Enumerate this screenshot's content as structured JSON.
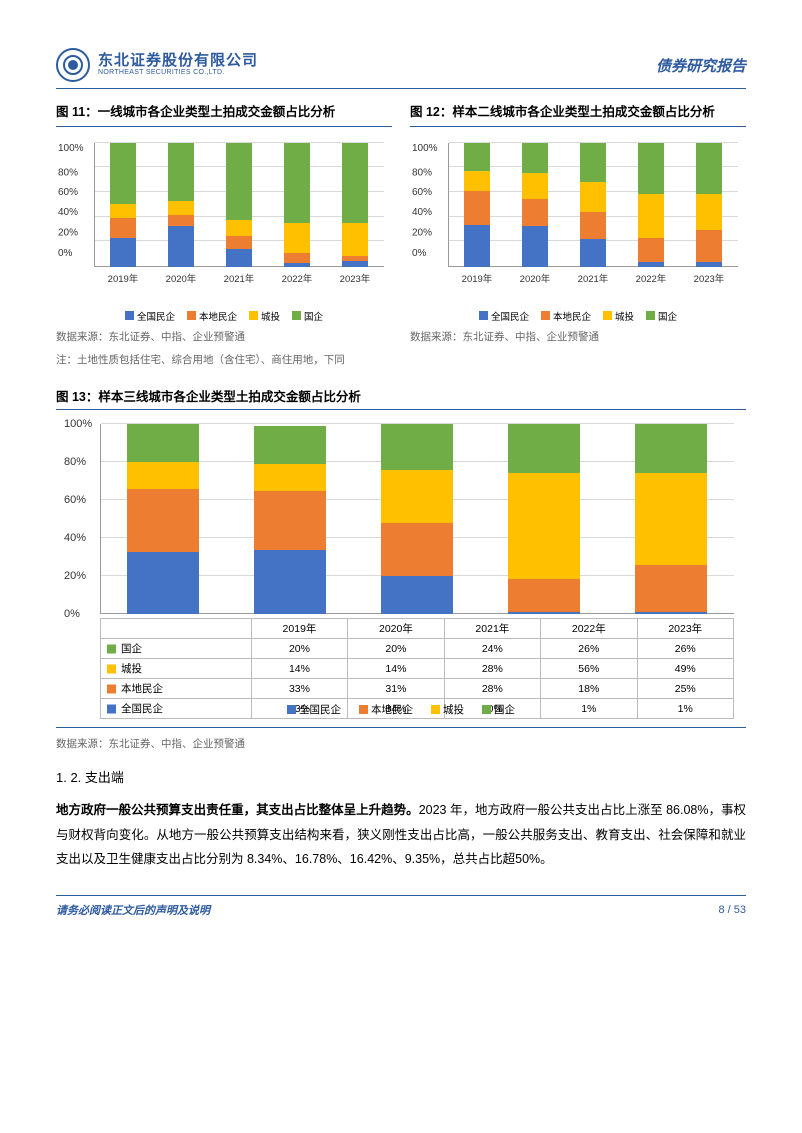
{
  "header": {
    "logo_cn": "东北证券股份有限公司",
    "logo_en": "NORTHEAST SECURITIES CO.,LTD.",
    "right": "债券研究报告"
  },
  "colors": {
    "s1": "#4472c4",
    "s2": "#ed7d31",
    "s3": "#ffc000",
    "s4": "#70ad47",
    "grid": "#d9d9d9",
    "brand": "#2e5b9f"
  },
  "legend_labels": [
    "全国民企",
    "本地民企",
    "城投",
    "国企"
  ],
  "fig11": {
    "title": "图 11：一线城市各企业类型土拍成交金额占比分析",
    "categories": [
      "2019年",
      "2020年",
      "2021年",
      "2022年",
      "2023年"
    ],
    "yticks": [
      "0%",
      "20%",
      "40%",
      "60%",
      "80%",
      "100%"
    ],
    "series": [
      [
        23,
        33,
        14,
        3,
        5
      ],
      [
        16,
        9,
        11,
        8,
        4
      ],
      [
        12,
        11,
        13,
        24,
        26
      ],
      [
        49,
        47,
        62,
        65,
        65
      ]
    ],
    "source": "数据来源：东北证券、中指、企业预警通",
    "note": "注：土地性质包括住宅、综合用地（含住宅）、商住用地，下同"
  },
  "fig12": {
    "title": "图 12：样本二线城市各企业类型土拍成交金额占比分析",
    "categories": [
      "2019年",
      "2020年",
      "2021年",
      "2022年",
      "2023年"
    ],
    "yticks": [
      "0%",
      "20%",
      "40%",
      "60%",
      "80%",
      "100%"
    ],
    "series": [
      [
        34,
        33,
        22,
        4,
        4
      ],
      [
        27,
        22,
        22,
        19,
        26
      ],
      [
        16,
        21,
        24,
        36,
        29
      ],
      [
        23,
        24,
        32,
        41,
        41
      ]
    ],
    "source": "数据来源：东北证券、中指、企业预警通"
  },
  "fig13": {
    "title": "图 13：样本三线城市各企业类型土拍成交金额占比分析",
    "categories": [
      "2019年",
      "2020年",
      "2021年",
      "2022年",
      "2023年"
    ],
    "yticks": [
      "0%",
      "20%",
      "40%",
      "60%",
      "80%",
      "100%"
    ],
    "series_labels": [
      "国企",
      "城投",
      "本地民企",
      "全国民企"
    ],
    "table_rows": [
      {
        "label": "国企",
        "color": "#70ad47",
        "vals": [
          "20%",
          "20%",
          "24%",
          "26%",
          "26%"
        ]
      },
      {
        "label": "城投",
        "color": "#ffc000",
        "vals": [
          "14%",
          "14%",
          "28%",
          "56%",
          "49%"
        ]
      },
      {
        "label": "本地民企",
        "color": "#ed7d31",
        "vals": [
          "33%",
          "31%",
          "28%",
          "18%",
          "25%"
        ]
      },
      {
        "label": "全国民企",
        "color": "#4472c4",
        "vals": [
          "33%",
          "34%",
          "20%",
          "1%",
          "1%"
        ]
      }
    ],
    "series": [
      [
        33,
        34,
        20,
        1,
        1
      ],
      [
        33,
        31,
        28,
        18,
        25
      ],
      [
        14,
        14,
        28,
        56,
        49
      ],
      [
        20,
        20,
        24,
        26,
        26
      ]
    ],
    "source": "数据来源：东北证券、中指、企业预警通"
  },
  "section": "1. 2.  支出端",
  "para1_bold": "地方政府一般公共预算支出责任重，其支出占比整体呈上升趋势。",
  "para1_rest": "2023 年，地方政府一般公共支出占比上涨至 86.08%，事权与财权背向变化。从地方一般公共预算支出结构来看，狭义刚性支出占比高，一般公共服务支出、教育支出、社会保障和就业支出以及卫生健康支出占比分别为 8.34%、16.78%、16.42%、9.35%，总共占比超50%。",
  "footer": {
    "left": "请务必阅读正文后的声明及说明",
    "right": "8 / 53"
  }
}
